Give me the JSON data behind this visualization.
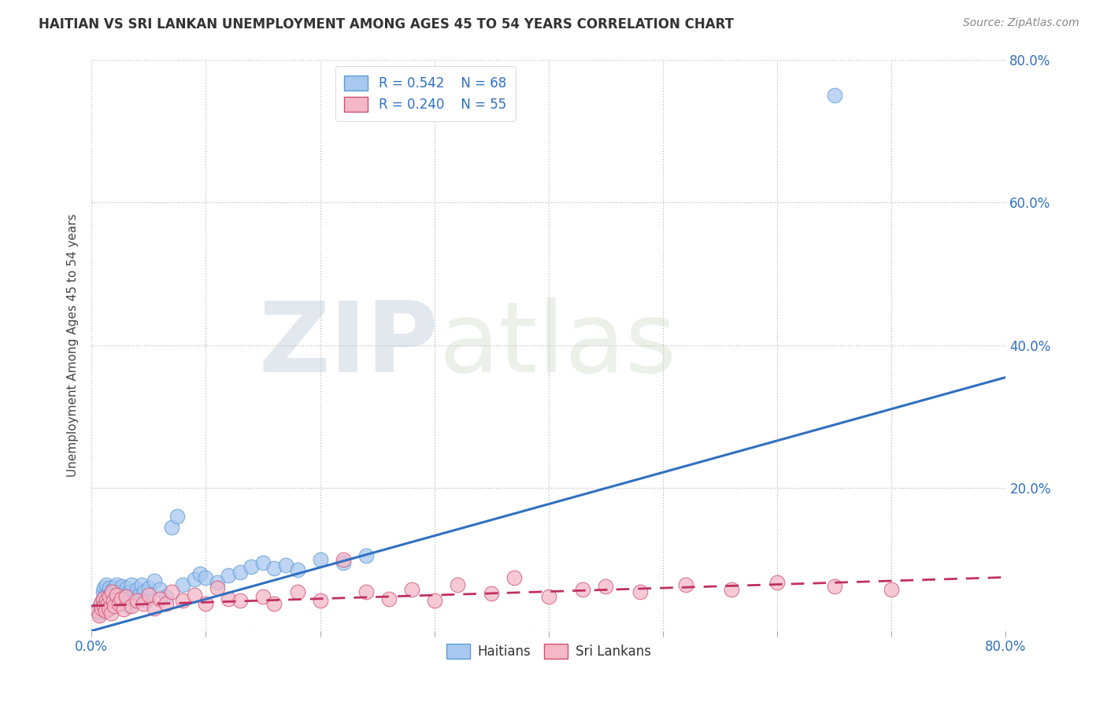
{
  "title": "HAITIAN VS SRI LANKAN UNEMPLOYMENT AMONG AGES 45 TO 54 YEARS CORRELATION CHART",
  "source": "Source: ZipAtlas.com",
  "ylabel": "Unemployment Among Ages 45 to 54 years",
  "xlim": [
    0.0,
    0.8
  ],
  "ylim": [
    0.0,
    0.8
  ],
  "x_ticks": [
    0.0,
    0.1,
    0.2,
    0.3,
    0.4,
    0.5,
    0.6,
    0.7,
    0.8
  ],
  "x_tick_labels": [
    "0.0%",
    "",
    "",
    "",
    "",
    "",
    "",
    "",
    "80.0%"
  ],
  "y_tick_labels": [
    "",
    "20.0%",
    "40.0%",
    "60.0%",
    "80.0%"
  ],
  "y_ticks": [
    0.0,
    0.2,
    0.4,
    0.6,
    0.8
  ],
  "haitian_color": "#A8C8F0",
  "haitian_edge_color": "#5B9BD5",
  "srilankan_color": "#F4B8C8",
  "srilankan_edge_color": "#D05070",
  "haitian_line_color": "#3070C0",
  "srilankan_line_color": "#C03060",
  "watermark_zip": "ZIP",
  "watermark_atlas": "atlas",
  "legend_R_haitian": "R = 0.542",
  "legend_N_haitian": "N = 68",
  "legend_R_srilankan": "R = 0.240",
  "legend_N_srilankan": "N = 55",
  "haitian_scatter_x": [
    0.005,
    0.007,
    0.008,
    0.009,
    0.01,
    0.01,
    0.01,
    0.011,
    0.011,
    0.012,
    0.012,
    0.013,
    0.013,
    0.014,
    0.014,
    0.015,
    0.015,
    0.016,
    0.016,
    0.017,
    0.017,
    0.018,
    0.018,
    0.019,
    0.02,
    0.02,
    0.021,
    0.022,
    0.023,
    0.024,
    0.025,
    0.026,
    0.027,
    0.028,
    0.03,
    0.031,
    0.032,
    0.033,
    0.035,
    0.036,
    0.038,
    0.04,
    0.042,
    0.044,
    0.046,
    0.048,
    0.05,
    0.055,
    0.06,
    0.065,
    0.07,
    0.075,
    0.08,
    0.09,
    0.095,
    0.1,
    0.11,
    0.12,
    0.13,
    0.14,
    0.15,
    0.16,
    0.17,
    0.18,
    0.2,
    0.22,
    0.65,
    0.24
  ],
  "haitian_scatter_y": [
    0.03,
    0.025,
    0.035,
    0.04,
    0.045,
    0.028,
    0.055,
    0.06,
    0.035,
    0.05,
    0.042,
    0.038,
    0.065,
    0.032,
    0.048,
    0.055,
    0.03,
    0.042,
    0.06,
    0.038,
    0.052,
    0.045,
    0.035,
    0.058,
    0.04,
    0.06,
    0.05,
    0.065,
    0.042,
    0.055,
    0.048,
    0.038,
    0.062,
    0.045,
    0.05,
    0.06,
    0.035,
    0.055,
    0.065,
    0.048,
    0.042,
    0.058,
    0.05,
    0.065,
    0.055,
    0.042,
    0.06,
    0.07,
    0.058,
    0.048,
    0.145,
    0.16,
    0.065,
    0.072,
    0.08,
    0.075,
    0.068,
    0.078,
    0.082,
    0.09,
    0.095,
    0.088,
    0.092,
    0.085,
    0.1,
    0.095,
    0.75,
    0.105
  ],
  "srilankan_scatter_x": [
    0.005,
    0.007,
    0.008,
    0.009,
    0.01,
    0.011,
    0.012,
    0.013,
    0.014,
    0.015,
    0.016,
    0.017,
    0.018,
    0.019,
    0.02,
    0.022,
    0.024,
    0.026,
    0.028,
    0.03,
    0.035,
    0.04,
    0.045,
    0.05,
    0.055,
    0.06,
    0.065,
    0.07,
    0.08,
    0.09,
    0.1,
    0.11,
    0.12,
    0.13,
    0.15,
    0.16,
    0.18,
    0.2,
    0.22,
    0.24,
    0.26,
    0.28,
    0.3,
    0.32,
    0.35,
    0.37,
    0.4,
    0.43,
    0.45,
    0.48,
    0.52,
    0.56,
    0.6,
    0.65,
    0.7
  ],
  "srilankan_scatter_y": [
    0.028,
    0.022,
    0.038,
    0.032,
    0.045,
    0.035,
    0.028,
    0.042,
    0.038,
    0.032,
    0.048,
    0.025,
    0.055,
    0.042,
    0.035,
    0.05,
    0.038,
    0.045,
    0.03,
    0.048,
    0.035,
    0.042,
    0.038,
    0.05,
    0.032,
    0.045,
    0.038,
    0.055,
    0.042,
    0.05,
    0.038,
    0.06,
    0.045,
    0.042,
    0.048,
    0.038,
    0.055,
    0.042,
    0.1,
    0.055,
    0.045,
    0.058,
    0.042,
    0.065,
    0.052,
    0.075,
    0.048,
    0.058,
    0.062,
    0.055,
    0.065,
    0.058,
    0.068,
    0.062,
    0.058
  ],
  "haitian_line_x0": 0.0,
  "haitian_line_y0": 0.0,
  "haitian_line_x1": 0.8,
  "haitian_line_y1": 0.355,
  "srilankan_line_x0": 0.0,
  "srilankan_line_y0": 0.035,
  "srilankan_line_x1": 0.8,
  "srilankan_line_y1": 0.075
}
